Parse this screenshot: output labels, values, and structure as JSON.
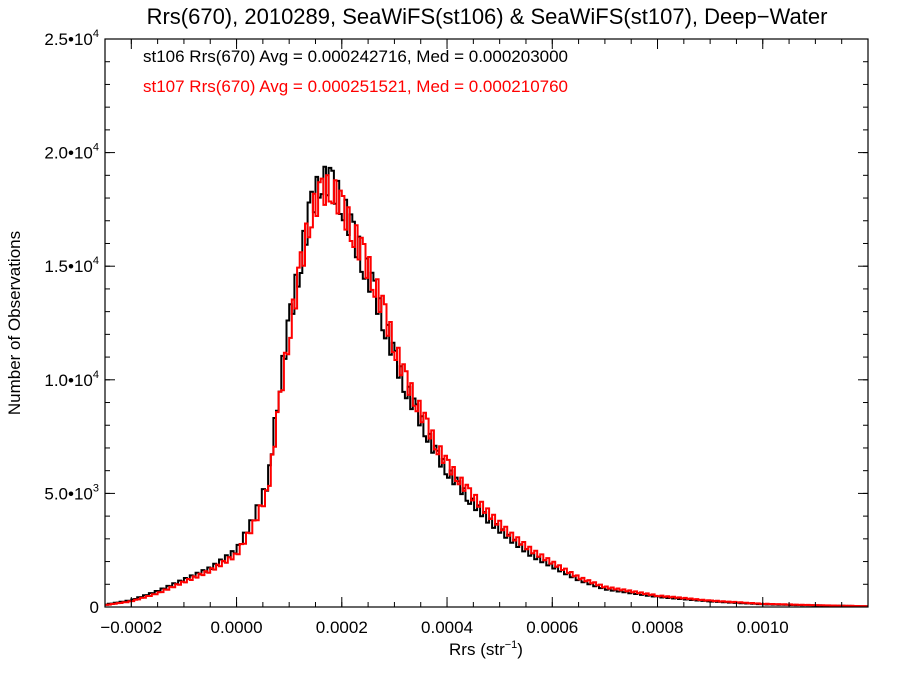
{
  "chart_data": {
    "type": "line",
    "title": "Rrs(670), 2010289, SeaWiFS(st106) & SeaWiFS(st107), Deep−Water",
    "xlabel_main": "Rrs (str",
    "xlabel_sup": "−1",
    "xlabel_end": ")",
    "ylabel": "Number of Observations",
    "xlim": [
      -0.00025,
      0.0012
    ],
    "ylim": [
      0,
      25000
    ],
    "grid": false,
    "legend_position": "top-left",
    "x_ticks": [
      {
        "value": -0.0002,
        "label": "−0.0002"
      },
      {
        "value": 0.0,
        "label": "0.0000"
      },
      {
        "value": 0.0002,
        "label": "0.0002"
      },
      {
        "value": 0.0004,
        "label": "0.0004"
      },
      {
        "value": 0.0006,
        "label": "0.0006"
      },
      {
        "value": 0.0008,
        "label": "0.0008"
      },
      {
        "value": 0.001,
        "label": "0.0010"
      }
    ],
    "y_ticks": [
      {
        "value": 0,
        "mant": "0",
        "exp": ""
      },
      {
        "value": 5000,
        "mant": "5.0•10",
        "exp": "3"
      },
      {
        "value": 10000,
        "mant": "1.0•10",
        "exp": "4"
      },
      {
        "value": 15000,
        "mant": "1.5•10",
        "exp": "4"
      },
      {
        "value": 20000,
        "mant": "2.0•10",
        "exp": "4"
      },
      {
        "value": 25000,
        "mant": "2.5•10",
        "exp": "4"
      }
    ],
    "series": [
      {
        "name": "st106",
        "stat_text": "st106 Rrs(670) Avg = 0.000242716, Med = 0.000203000",
        "color": "#000000",
        "avg": 0.000242716,
        "median": 0.000203,
        "x": [
          -0.00025,
          -0.0002,
          -0.00015,
          -0.0001,
          -5e-05,
          0.0,
          3e-05,
          6e-05,
          8e-05,
          0.0001,
          0.00012,
          0.00014,
          0.00016,
          0.00018,
          0.0002,
          0.00022,
          0.00024,
          0.00026,
          0.00028,
          0.0003,
          0.00032,
          0.00034,
          0.00036,
          0.00038,
          0.0004,
          0.00042,
          0.00044,
          0.00048,
          0.00052,
          0.00056,
          0.0006,
          0.00065,
          0.0007,
          0.0008,
          0.0009,
          0.001,
          0.0011,
          0.0012
        ],
        "y": [
          100,
          300,
          700,
          1200,
          1700,
          2500,
          3800,
          5500,
          9500,
          12500,
          15000,
          17500,
          18800,
          18700,
          17800,
          16500,
          15200,
          14000,
          12500,
          11000,
          9700,
          8700,
          7700,
          6700,
          6000,
          5400,
          4800,
          3800,
          3000,
          2300,
          1800,
          1200,
          800,
          450,
          250,
          120,
          70,
          30
        ]
      },
      {
        "name": "st107",
        "stat_text": "st107 Rrs(670) Avg = 0.000251521, Med = 0.000210760",
        "color": "#ff0000",
        "avg": 0.000251521,
        "median": 0.00021076,
        "x": [
          -0.00025,
          -0.0002,
          -0.00015,
          -0.0001,
          -5e-05,
          0.0,
          3e-05,
          6e-05,
          8e-05,
          0.0001,
          0.00012,
          0.00014,
          0.00016,
          0.00018,
          0.0002,
          0.00022,
          0.00024,
          0.00026,
          0.00028,
          0.0003,
          0.00032,
          0.00034,
          0.00036,
          0.00038,
          0.0004,
          0.00042,
          0.00044,
          0.00048,
          0.00052,
          0.00056,
          0.0006,
          0.00065,
          0.0007,
          0.0008,
          0.0009,
          0.001,
          0.0011,
          0.0012
        ],
        "y": [
          80,
          250,
          600,
          1100,
          1600,
          2300,
          3500,
          5100,
          8700,
          12000,
          14700,
          17200,
          18200,
          18500,
          17600,
          16600,
          15500,
          14400,
          13000,
          11500,
          10100,
          9100,
          8100,
          7100,
          6300,
          5700,
          5100,
          4100,
          3200,
          2500,
          1950,
          1300,
          880,
          500,
          280,
          140,
          80,
          35
        ]
      }
    ]
  }
}
